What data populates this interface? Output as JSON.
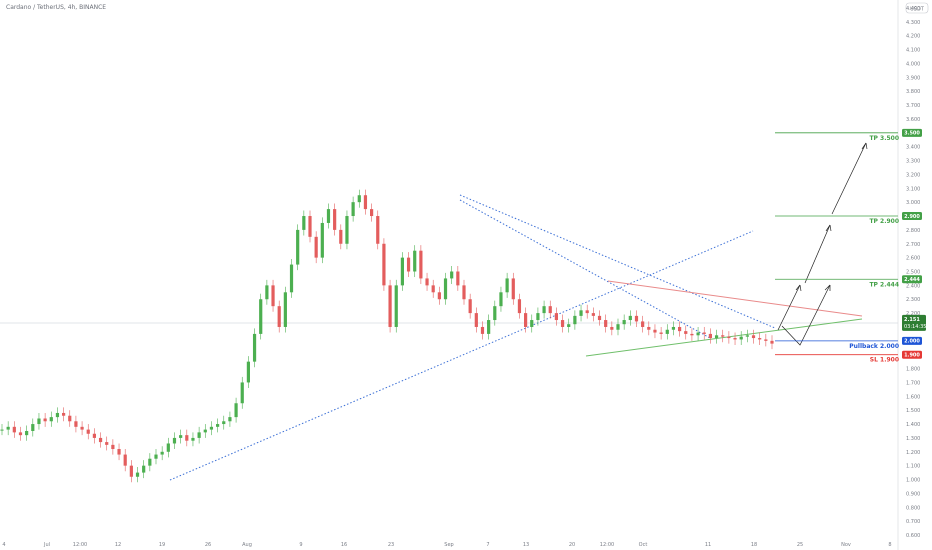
{
  "header": {
    "title": "Cardano / TetherUS, 4h, BINANCE",
    "currency_badge": "USDT"
  },
  "chart_data": {
    "type": "line",
    "title": "",
    "ylim": [
      0.6,
      4.4
    ],
    "y_ticks": [
      0.6,
      0.7,
      0.8,
      0.9,
      1.0,
      1.1,
      1.2,
      1.3,
      1.4,
      1.5,
      1.6,
      1.7,
      1.8,
      1.9,
      2.0,
      2.1,
      2.2,
      2.3,
      2.4,
      2.5,
      2.6,
      2.7,
      2.8,
      2.9,
      3.0,
      3.1,
      3.2,
      3.3,
      3.4,
      3.5,
      3.6,
      3.7,
      3.8,
      3.9,
      4.0,
      4.1,
      4.2,
      4.3,
      4.4
    ],
    "x_tick_labels": [
      "4",
      "Jul",
      "12:00",
      "12",
      "19",
      "26",
      "Aug",
      "9",
      "16",
      "23",
      "Sep",
      "7",
      "13",
      "20",
      "12:00",
      "Oct",
      "11",
      "18",
      "25",
      "Nov",
      "8"
    ],
    "series": [
      {
        "x": [
          0,
          2,
          4,
          6,
          8,
          10,
          12,
          14,
          16,
          18,
          20,
          22,
          24,
          26,
          28,
          30,
          32,
          34,
          36,
          38,
          40,
          42,
          44,
          46,
          48,
          50,
          52,
          54,
          56,
          58,
          60,
          62,
          64,
          66,
          68,
          70,
          72,
          74,
          76,
          78,
          80,
          82,
          84,
          86,
          88,
          90,
          92,
          94,
          96,
          98,
          100,
          102,
          104,
          106,
          108,
          110,
          112,
          114,
          116,
          118,
          120,
          122,
          124,
          126,
          128,
          130,
          132,
          134,
          136,
          138,
          140,
          142,
          144,
          146,
          148,
          150,
          152,
          154,
          156,
          158,
          160,
          162,
          164,
          166,
          168,
          170,
          172,
          174,
          176,
          178,
          180,
          182,
          184,
          186,
          188,
          190,
          192,
          194,
          196,
          198,
          200,
          202,
          204,
          206,
          208,
          210,
          212,
          214,
          216,
          218,
          220,
          222,
          224,
          226,
          228,
          230,
          232,
          234,
          236,
          238,
          240,
          242,
          244,
          246,
          248,
          250
        ],
        "values": [
          1.36,
          1.38,
          1.34,
          1.32,
          1.35,
          1.4,
          1.44,
          1.42,
          1.45,
          1.48,
          1.46,
          1.42,
          1.38,
          1.36,
          1.33,
          1.3,
          1.27,
          1.25,
          1.22,
          1.18,
          1.1,
          1.02,
          1.05,
          1.1,
          1.15,
          1.18,
          1.2,
          1.26,
          1.3,
          1.32,
          1.28,
          1.3,
          1.34,
          1.36,
          1.38,
          1.4,
          1.42,
          1.45,
          1.55,
          1.7,
          1.85,
          2.05,
          2.3,
          2.4,
          2.25,
          2.1,
          2.35,
          2.55,
          2.8,
          2.9,
          2.75,
          2.6,
          2.85,
          2.95,
          2.8,
          2.7,
          2.9,
          3.0,
          3.05,
          2.95,
          2.9,
          2.7,
          2.4,
          2.1,
          2.4,
          2.6,
          2.5,
          2.65,
          2.45,
          2.4,
          2.35,
          2.3,
          2.45,
          2.5,
          2.4,
          2.3,
          2.2,
          2.1,
          2.05,
          2.15,
          2.25,
          2.35,
          2.45,
          2.3,
          2.2,
          2.1,
          2.15,
          2.2,
          2.25,
          2.2,
          2.15,
          2.1,
          2.12,
          2.18,
          2.22,
          2.2,
          2.18,
          2.15,
          2.1,
          2.08,
          2.12,
          2.15,
          2.18,
          2.14,
          2.1,
          2.08,
          2.06,
          2.05,
          2.08,
          2.1,
          2.07,
          2.05,
          2.04,
          2.06,
          2.05,
          2.02,
          2.04,
          2.03,
          2.02,
          2.01,
          2.03,
          2.04,
          2.02,
          2.01,
          2.0,
          1.98
        ]
      }
    ],
    "levels": [
      {
        "name": "TP",
        "value": 3.5,
        "label": "TP 3.500",
        "badge": "3.500",
        "color": "#43a047"
      },
      {
        "name": "TP",
        "value": 2.9,
        "label": "TP 2.900",
        "badge": "2.900",
        "color": "#43a047"
      },
      {
        "name": "TP",
        "value": 2.444,
        "label": "TP 2.444",
        "badge": "2.444",
        "color": "#43a047"
      },
      {
        "name": "Pullback",
        "value": 2.0,
        "label": "Pullback 2.000",
        "badge": "2.000",
        "color": "#1e55d6"
      },
      {
        "name": "SL",
        "value": 1.9,
        "label": "SL 1.900",
        "badge": "1.900",
        "color": "#e53935"
      }
    ],
    "current_price": {
      "value": 2.151,
      "label": "2.151",
      "countdown": "03:14:35",
      "color": "#2e7d32"
    },
    "grid": false
  }
}
